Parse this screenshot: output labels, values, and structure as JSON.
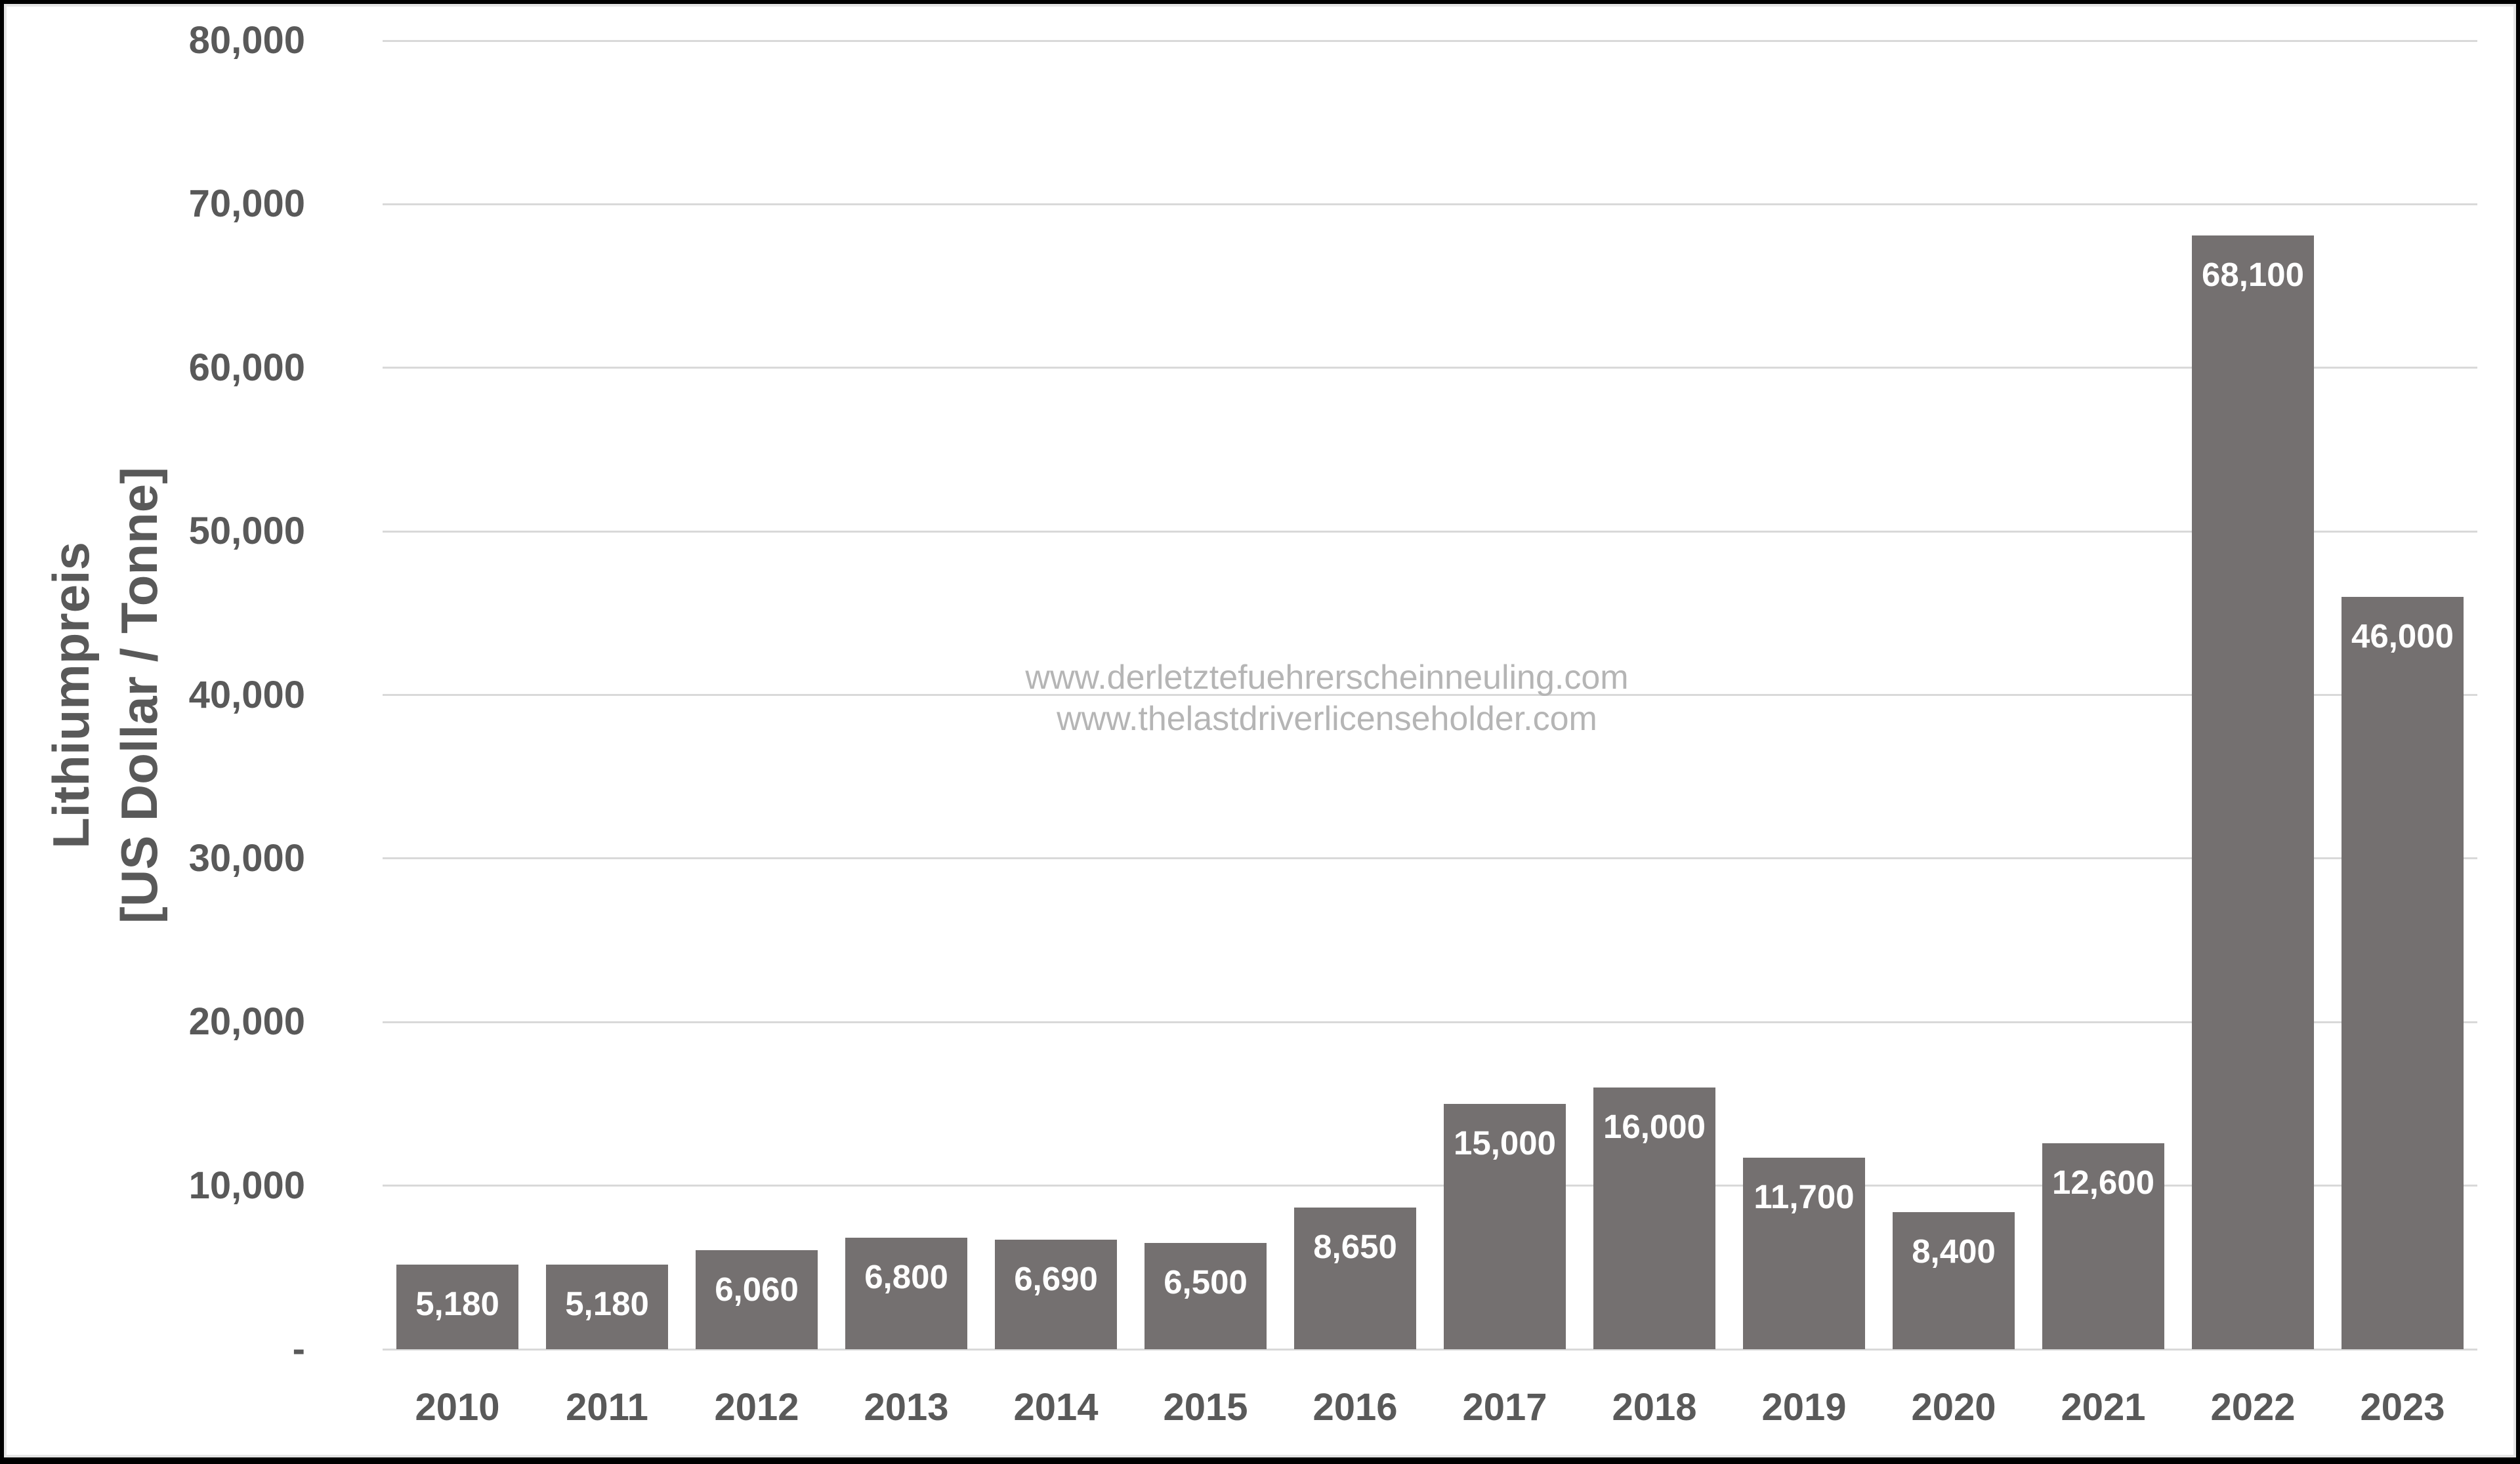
{
  "chart": {
    "y_axis_title_line1": "Lithiumpreis",
    "y_axis_title_line2": "[US Dollar / Tonne]"
  },
  "watermark": {
    "line1": "www.derletztefuehrerscheinneuling.com",
    "line2": "www.thelastdriverlicenseholder.com"
  },
  "chart_data": {
    "type": "bar",
    "title": "",
    "xlabel": "",
    "ylabel": "Lithiumpreis [US Dollar / Tonne]",
    "ylim": [
      0,
      80000
    ],
    "grid": "horizontal",
    "legend": "none",
    "categories": [
      "2010",
      "2011",
      "2012",
      "2013",
      "2014",
      "2015",
      "2016",
      "2017",
      "2018",
      "2019",
      "2020",
      "2021",
      "2022",
      "2023"
    ],
    "values": [
      5180,
      5180,
      6060,
      6800,
      6690,
      6500,
      8650,
      15000,
      16000,
      11700,
      8400,
      12600,
      68100,
      46000
    ],
    "value_labels": [
      "5,180",
      "5,180",
      "6,060",
      "6,800",
      "6,690",
      "6,500",
      "8,650",
      "15,000",
      "16,000",
      "11,700",
      "8,400",
      "12,600",
      "68,100",
      "46,000"
    ],
    "yticks": [
      {
        "value": 80000,
        "label": "80,000"
      },
      {
        "value": 70000,
        "label": "70,000"
      },
      {
        "value": 60000,
        "label": "60,000"
      },
      {
        "value": 50000,
        "label": "50,000"
      },
      {
        "value": 40000,
        "label": "40,000"
      },
      {
        "value": 30000,
        "label": "30,000"
      },
      {
        "value": 20000,
        "label": "20,000"
      },
      {
        "value": 10000,
        "label": "10,000"
      },
      {
        "value": 0,
        "label": "-"
      }
    ]
  },
  "colors": {
    "bar": "#747070",
    "value_label": "#ffffff",
    "axis_text": "#595959",
    "gridline": "#d9d9d9",
    "watermark": "#b5b5b5",
    "frame": "#000000",
    "inner_border": "#e5e5e5"
  }
}
